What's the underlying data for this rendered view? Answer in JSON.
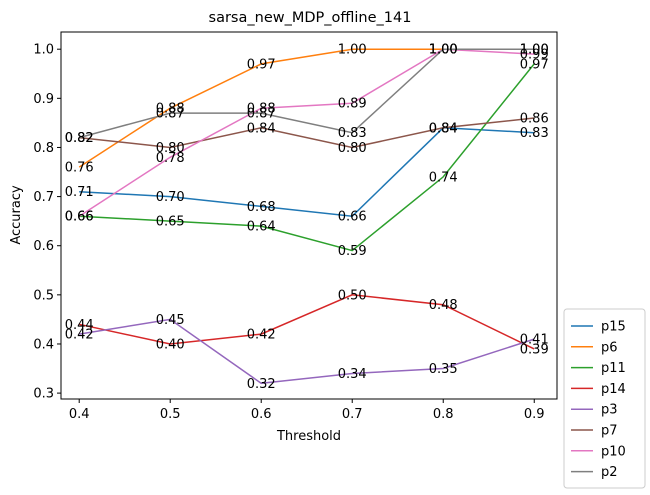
{
  "chart_data": {
    "type": "line",
    "title": "sarsa_new_MDP_offline_141",
    "xlabel": "Threshold",
    "ylabel": "Accuracy",
    "x": [
      0.4,
      0.5,
      0.6,
      0.7,
      0.8,
      0.9
    ],
    "x_tick_labels": [
      "0.4",
      "0.5",
      "0.6",
      "0.7",
      "0.8",
      "0.9"
    ],
    "y_ticks": [
      0.3,
      0.4,
      0.5,
      0.6,
      0.7,
      0.8,
      0.9,
      1.0
    ],
    "y_tick_labels": [
      "0.3",
      "0.4",
      "0.5",
      "0.6",
      "0.7",
      "0.8",
      "0.9",
      "1.0"
    ],
    "xlim": [
      0.38,
      0.925
    ],
    "ylim": [
      0.288,
      1.035
    ],
    "grid": false,
    "legend_position": "outside-bottom-right",
    "series": [
      {
        "name": "p15",
        "color": "#1f77b4",
        "values": [
          0.71,
          0.7,
          0.68,
          0.66,
          0.84,
          0.83
        ]
      },
      {
        "name": "p6",
        "color": "#ff7f0e",
        "values": [
          0.76,
          0.88,
          0.97,
          1.0,
          1.0,
          1.0
        ]
      },
      {
        "name": "p11",
        "color": "#2ca02c",
        "values": [
          0.66,
          0.65,
          0.64,
          0.59,
          0.74,
          0.97
        ]
      },
      {
        "name": "p14",
        "color": "#d62728",
        "values": [
          0.44,
          0.4,
          0.42,
          0.5,
          0.48,
          0.39
        ]
      },
      {
        "name": "p3",
        "color": "#9467bd",
        "values": [
          0.42,
          0.45,
          0.32,
          0.34,
          0.35,
          0.41
        ]
      },
      {
        "name": "p7",
        "color": "#8c564b",
        "values": [
          0.82,
          0.8,
          0.84,
          0.8,
          0.84,
          0.86
        ]
      },
      {
        "name": "p10",
        "color": "#e377c2",
        "values": [
          0.66,
          0.78,
          0.88,
          0.89,
          1.0,
          0.99
        ]
      },
      {
        "name": "p2",
        "color": "#7f7f7f",
        "values": [
          0.82,
          0.87,
          0.87,
          0.83,
          1.0,
          1.0
        ]
      }
    ]
  }
}
